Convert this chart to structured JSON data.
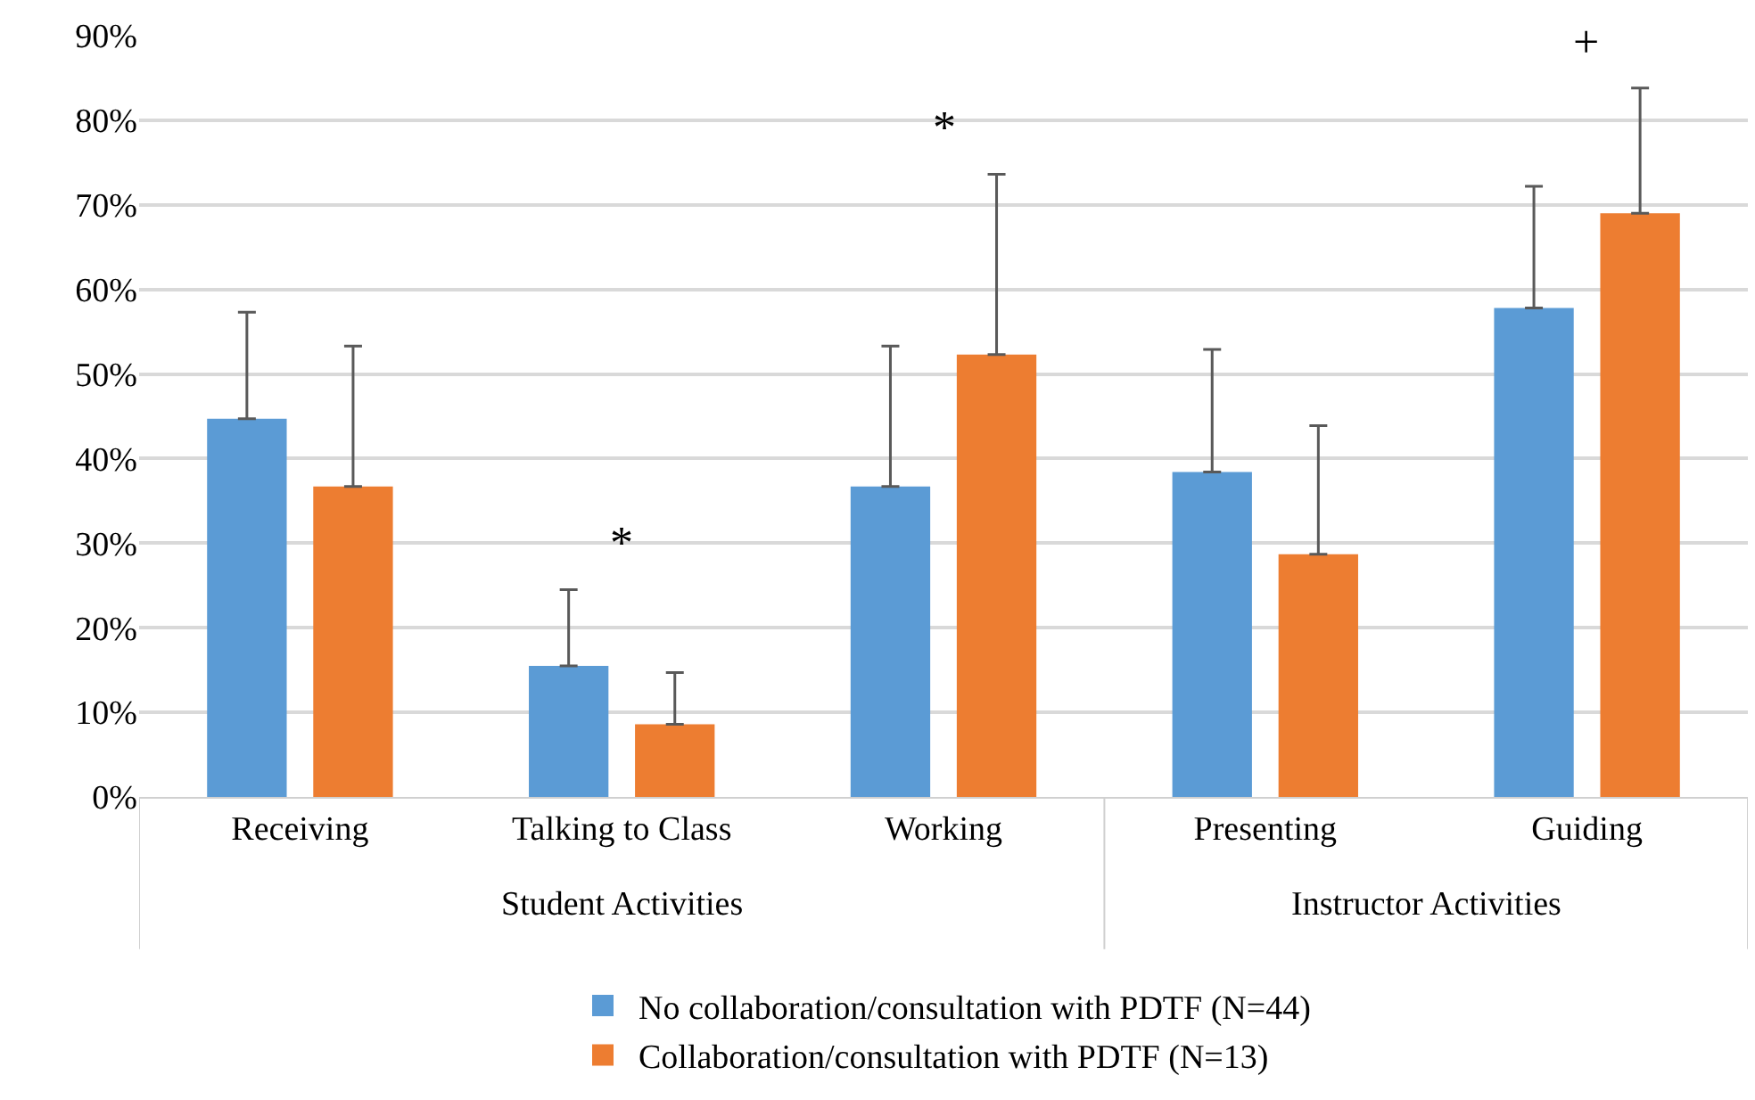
{
  "chart_data": {
    "type": "bar",
    "categories": [
      "Receiving",
      "Talking to Class",
      "Working",
      "Presenting",
      "Guiding"
    ],
    "series": [
      {
        "name": "No collaboration/consultation with PDTF (N=44)",
        "color": "#5b9bd5",
        "values": [
          44.7,
          15.5,
          36.7,
          38.4,
          57.8
        ],
        "errors": [
          [
            44.7,
            57.3
          ],
          [
            15.5,
            24.5
          ],
          [
            36.7,
            53.3
          ],
          [
            38.4,
            52.9
          ],
          [
            57.8,
            72.2
          ]
        ]
      },
      {
        "name": "Collaboration/consultation with PDTF (N=13)",
        "color": "#ed7d31",
        "values": [
          36.7,
          8.6,
          52.3,
          28.7,
          69.0
        ],
        "errors": [
          [
            36.7,
            53.3
          ],
          [
            8.6,
            14.7
          ],
          [
            52.3,
            73.6
          ],
          [
            28.7,
            43.9
          ],
          [
            69.0,
            83.8
          ]
        ]
      }
    ],
    "annotations": [
      "*",
      "*",
      "+",
      "Student Activities",
      "Instructor Activities"
    ],
    "ylim": [
      0,
      90
    ],
    "yticks": [
      {
        "value": 0,
        "label": "0%"
      },
      {
        "value": 10,
        "label": "10%"
      },
      {
        "value": 20,
        "label": "20%"
      },
      {
        "value": 30,
        "label": "30%"
      },
      {
        "value": 40,
        "label": "40%"
      },
      {
        "value": 50,
        "label": "50%"
      },
      {
        "value": 60,
        "label": "60%"
      },
      {
        "value": 70,
        "label": "70%"
      },
      {
        "value": 80,
        "label": "80%"
      },
      {
        "value": 90,
        "label": "90%"
      }
    ],
    "grid": "y",
    "legend": "bottom"
  }
}
